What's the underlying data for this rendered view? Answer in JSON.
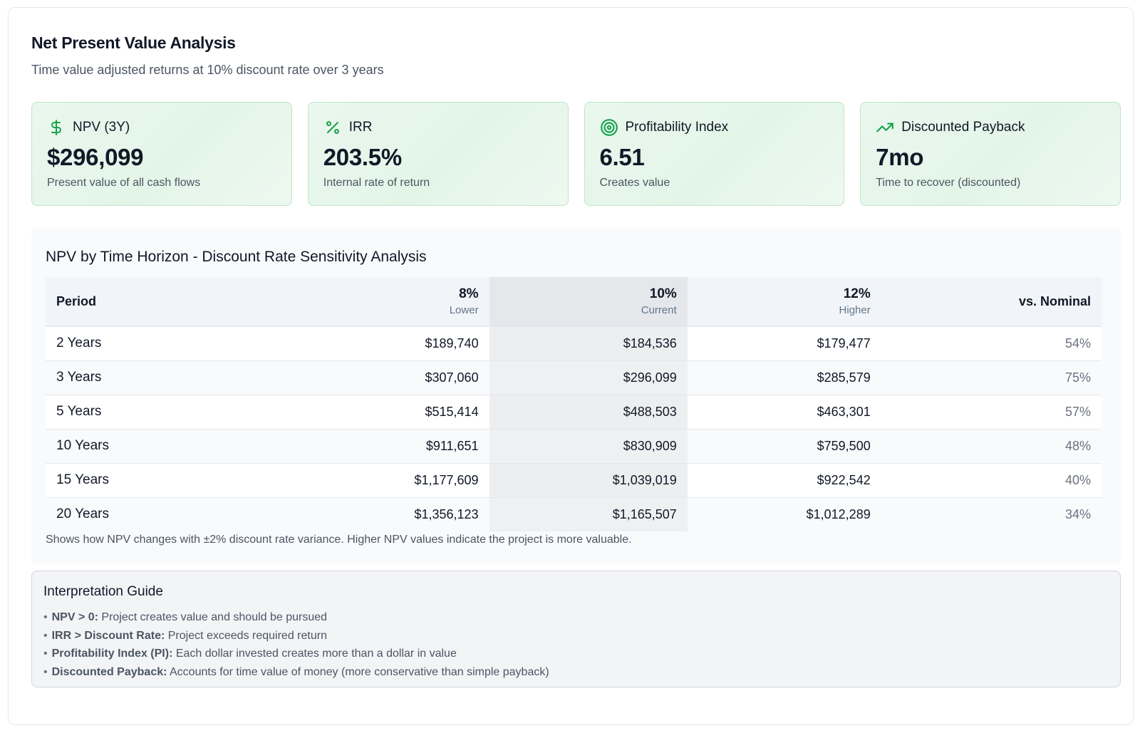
{
  "header": {
    "title": "Net Present Value Analysis",
    "subtitle": "Time value adjusted returns at 10% discount rate over 3 years"
  },
  "cards": [
    {
      "icon": "dollar-sign-icon",
      "label": "NPV (3Y)",
      "value": "$296,099",
      "desc": "Present value of all cash flows"
    },
    {
      "icon": "percent-icon",
      "label": "IRR",
      "value": "203.5%",
      "desc": "Internal rate of return"
    },
    {
      "icon": "target-icon",
      "label": "Profitability Index",
      "value": "6.51",
      "desc": "Creates value"
    },
    {
      "icon": "trending-up-icon",
      "label": "Discounted Payback",
      "value": "7mo",
      "desc": "Time to recover (discounted)"
    }
  ],
  "sensitivity": {
    "title": "NPV by Time Horizon - Discount Rate Sensitivity Analysis",
    "columns": {
      "period": "Period",
      "rate_low": "8%",
      "rate_low_sub": "Lower",
      "rate_cur": "10%",
      "rate_cur_sub": "Current",
      "rate_high": "12%",
      "rate_high_sub": "Higher",
      "vs": "vs. Nominal"
    },
    "rows": [
      {
        "period": "2 Years",
        "r8": "$189,740",
        "r10": "$184,536",
        "r12": "$179,477",
        "vs": "54%"
      },
      {
        "period": "3 Years",
        "r8": "$307,060",
        "r10": "$296,099",
        "r12": "$285,579",
        "vs": "75%"
      },
      {
        "period": "5 Years",
        "r8": "$515,414",
        "r10": "$488,503",
        "r12": "$463,301",
        "vs": "57%"
      },
      {
        "period": "10 Years",
        "r8": "$911,651",
        "r10": "$830,909",
        "r12": "$759,500",
        "vs": "48%"
      },
      {
        "period": "15 Years",
        "r8": "$1,177,609",
        "r10": "$1,039,019",
        "r12": "$922,542",
        "vs": "40%"
      },
      {
        "period": "20 Years",
        "r8": "$1,356,123",
        "r10": "$1,165,507",
        "r12": "$1,012,289",
        "vs": "34%"
      }
    ],
    "note": "Shows how NPV changes with ±2% discount rate variance. Higher NPV values indicate the project is more valuable."
  },
  "guide": {
    "title": "Interpretation Guide",
    "bullet": "•",
    "items": [
      {
        "term": "NPV > 0:",
        "text": " Project creates value and should be pursued"
      },
      {
        "term": "IRR > Discount Rate:",
        "text": " Project exceeds required return"
      },
      {
        "term": "Profitability Index (PI):",
        "text": " Each dollar invested creates more than a dollar in value"
      },
      {
        "term": "Discounted Payback:",
        "text": " Accounts for time value of money (more conservative than simple payback)"
      }
    ]
  },
  "colors": {
    "accent_green": "#16a34a",
    "card_border": "#bfe5c8",
    "card_bg": "#e6f6ea"
  }
}
